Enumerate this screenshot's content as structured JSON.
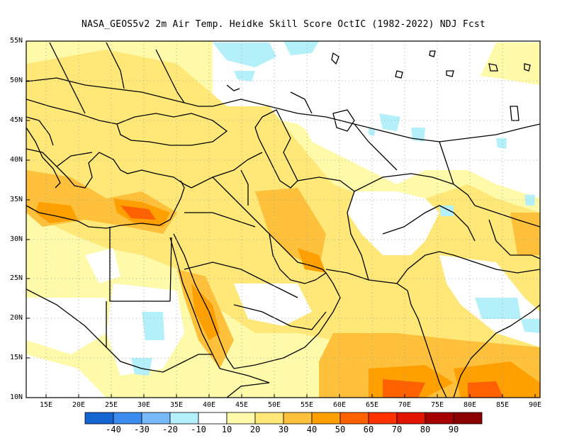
{
  "title": "NASA_GEOS5v2  2m Air Temp. Heidke Skill Score OctIC (1982-2022) NDJ Fcst",
  "map": {
    "lat_labels": [
      "55N",
      "50N",
      "45N",
      "40N",
      "35N",
      "30N",
      "25N",
      "20N",
      "15N",
      "10N"
    ],
    "lon_labels": [
      "15E",
      "20E",
      "25E",
      "30E",
      "35E",
      "40E",
      "45E",
      "50E",
      "55E",
      "60E",
      "65E",
      "70E",
      "75E",
      "80E",
      "85E",
      "90E"
    ],
    "lat_range": [
      10,
      55
    ],
    "lon_range": [
      11,
      90
    ]
  },
  "colorbar": {
    "labels": [
      "-40",
      "-30",
      "-20",
      "-10",
      "10",
      "20",
      "30",
      "40",
      "50",
      "60",
      "70",
      "80",
      "90"
    ],
    "colors": [
      "#1464d2",
      "#3c8cf0",
      "#78b9fa",
      "#b4f0fa",
      "#ffffff",
      "#fffaaa",
      "#ffe878",
      "#ffc03c",
      "#ffa000",
      "#ff6000",
      "#ff3200",
      "#e11400",
      "#a50000"
    ]
  },
  "colors": {
    "land_outline": "#000000",
    "grid": "#999999",
    "frame": "#000000"
  }
}
